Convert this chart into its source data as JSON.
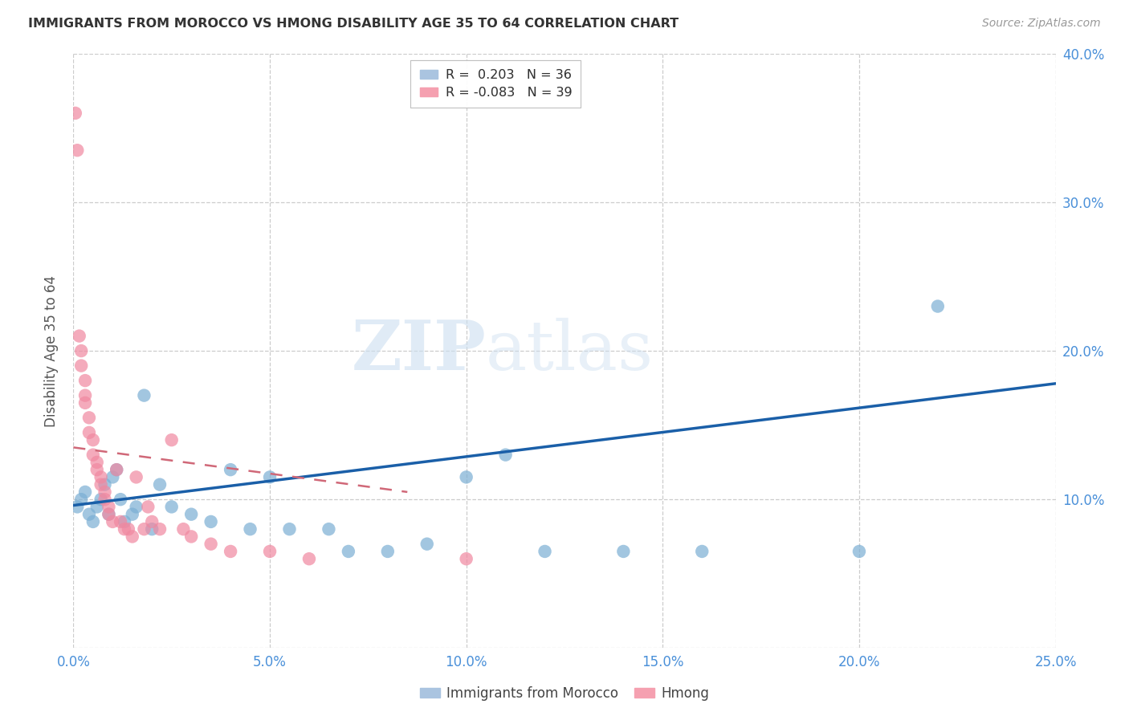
{
  "title": "IMMIGRANTS FROM MOROCCO VS HMONG DISABILITY AGE 35 TO 64 CORRELATION CHART",
  "source": "Source: ZipAtlas.com",
  "ylabel": "Disability Age 35 to 64",
  "xmin": 0.0,
  "xmax": 0.25,
  "ymin": 0.0,
  "ymax": 0.4,
  "xticks": [
    0.0,
    0.05,
    0.1,
    0.15,
    0.2,
    0.25
  ],
  "yticks": [
    0.0,
    0.1,
    0.2,
    0.3,
    0.4
  ],
  "xtick_labels": [
    "0.0%",
    "5.0%",
    "10.0%",
    "15.0%",
    "20.0%",
    "25.0%"
  ],
  "ytick_labels_right": [
    "",
    "10.0%",
    "20.0%",
    "30.0%",
    "40.0%"
  ],
  "legend_r_items": [
    {
      "label": "R =  0.203   N = 36",
      "color": "#aac4e0"
    },
    {
      "label": "R = -0.083   N = 39",
      "color": "#f5a0b0"
    }
  ],
  "legend_bottom": [
    "Immigrants from Morocco",
    "Hmong"
  ],
  "morocco_color": "#7bafd4",
  "hmong_color": "#f088a0",
  "morocco_line_color": "#1a5fa8",
  "hmong_line_color": "#d06878",
  "watermark_zip": "ZIP",
  "watermark_atlas": "atlas",
  "background_color": "#ffffff",
  "tick_color": "#4a90d9",
  "grid_color": "#cccccc",
  "morocco_x": [
    0.001,
    0.002,
    0.003,
    0.004,
    0.005,
    0.006,
    0.007,
    0.008,
    0.009,
    0.01,
    0.011,
    0.012,
    0.013,
    0.015,
    0.016,
    0.018,
    0.02,
    0.022,
    0.025,
    0.03,
    0.035,
    0.04,
    0.045,
    0.05,
    0.055,
    0.065,
    0.07,
    0.08,
    0.09,
    0.1,
    0.11,
    0.12,
    0.14,
    0.16,
    0.2,
    0.22
  ],
  "morocco_y": [
    0.095,
    0.1,
    0.105,
    0.09,
    0.085,
    0.095,
    0.1,
    0.11,
    0.09,
    0.115,
    0.12,
    0.1,
    0.085,
    0.09,
    0.095,
    0.17,
    0.08,
    0.11,
    0.095,
    0.09,
    0.085,
    0.12,
    0.08,
    0.115,
    0.08,
    0.08,
    0.065,
    0.065,
    0.07,
    0.115,
    0.13,
    0.065,
    0.065,
    0.065,
    0.065,
    0.23
  ],
  "hmong_x": [
    0.0005,
    0.001,
    0.0015,
    0.002,
    0.002,
    0.003,
    0.003,
    0.003,
    0.004,
    0.004,
    0.005,
    0.005,
    0.006,
    0.006,
    0.007,
    0.007,
    0.008,
    0.008,
    0.009,
    0.009,
    0.01,
    0.011,
    0.012,
    0.013,
    0.014,
    0.015,
    0.016,
    0.018,
    0.019,
    0.02,
    0.022,
    0.025,
    0.028,
    0.03,
    0.035,
    0.04,
    0.05,
    0.06,
    0.1
  ],
  "hmong_y": [
    0.36,
    0.335,
    0.21,
    0.2,
    0.19,
    0.18,
    0.17,
    0.165,
    0.155,
    0.145,
    0.14,
    0.13,
    0.125,
    0.12,
    0.115,
    0.11,
    0.105,
    0.1,
    0.095,
    0.09,
    0.085,
    0.12,
    0.085,
    0.08,
    0.08,
    0.075,
    0.115,
    0.08,
    0.095,
    0.085,
    0.08,
    0.14,
    0.08,
    0.075,
    0.07,
    0.065,
    0.065,
    0.06,
    0.06
  ],
  "morocco_trendline_x": [
    0.0,
    0.25
  ],
  "morocco_trendline_y": [
    0.096,
    0.178
  ],
  "hmong_trendline_x": [
    0.0,
    0.085
  ],
  "hmong_trendline_y": [
    0.135,
    0.105
  ]
}
